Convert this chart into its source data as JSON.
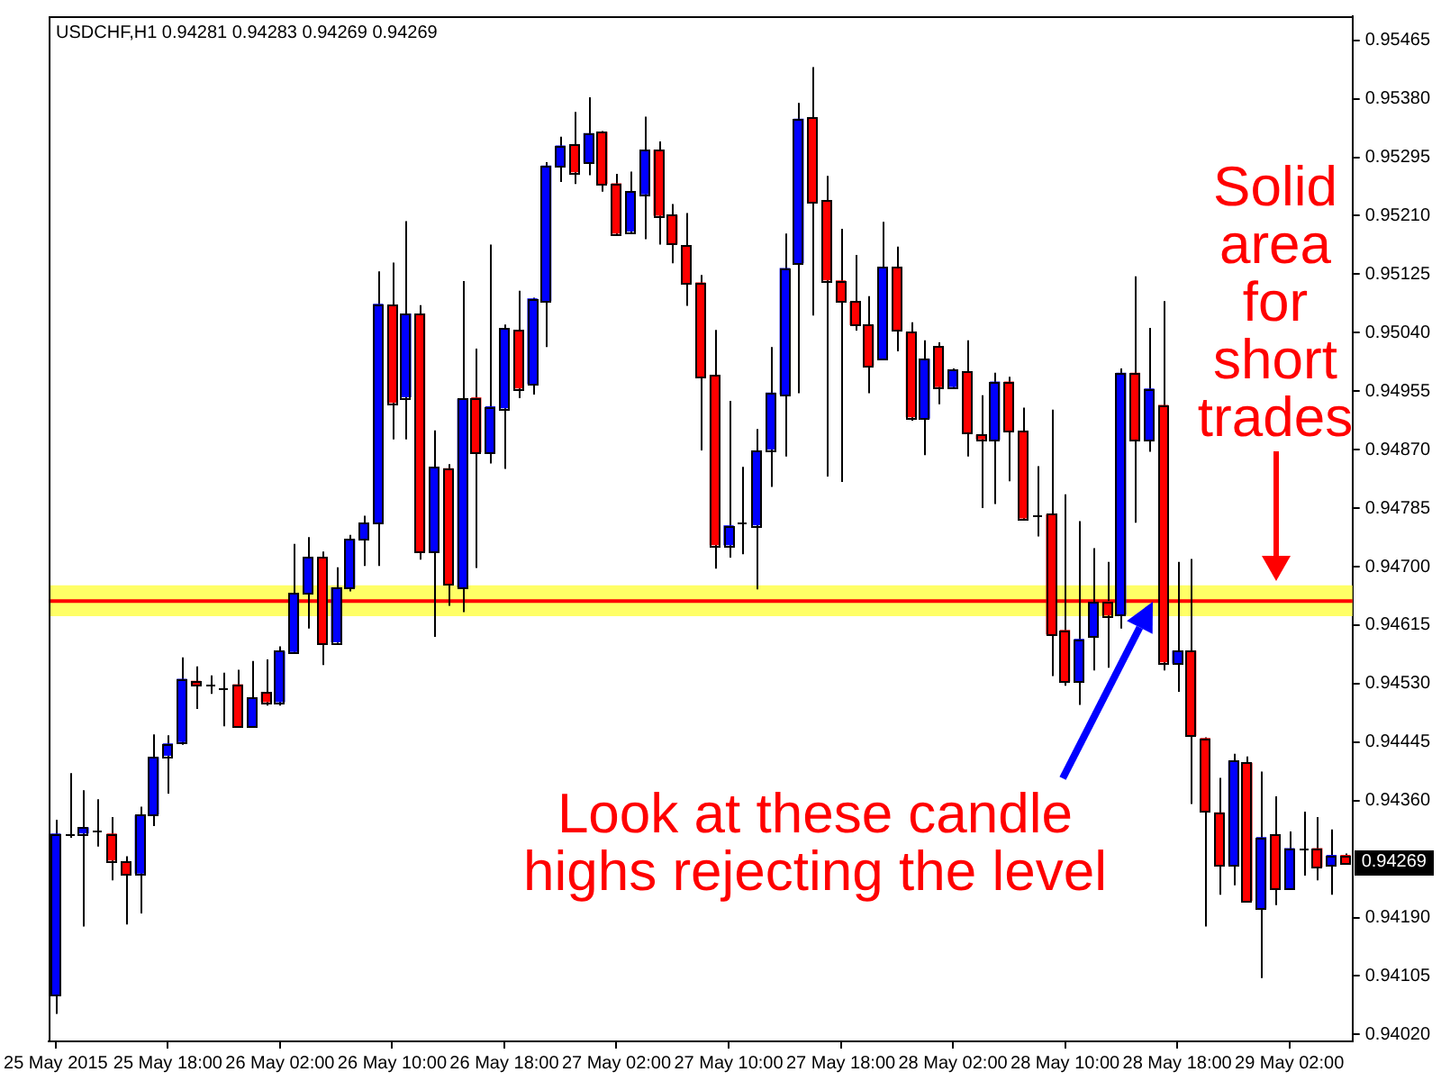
{
  "chart_data": {
    "type": "candlestick",
    "title": "USDCHF,H1 0.94281 0.94283 0.94269 0.94269",
    "categories": [
      "25 May 2015",
      null,
      null,
      null,
      null,
      null,
      null,
      null,
      "25 May 18:00",
      null,
      null,
      null,
      null,
      null,
      null,
      null,
      "26 May 02:00",
      null,
      null,
      null,
      null,
      null,
      null,
      null,
      "26 May 10:00",
      null,
      null,
      null,
      null,
      null,
      null,
      null,
      "26 May 18:00",
      null,
      null,
      null,
      null,
      null,
      null,
      null,
      "27 May 02:00",
      null,
      null,
      null,
      null,
      null,
      null,
      null,
      "27 May 10:00",
      null,
      null,
      null,
      null,
      null,
      null,
      null,
      "27 May 18:00",
      null,
      null,
      null,
      null,
      null,
      null,
      null,
      "28 May 02:00",
      null,
      null,
      null,
      null,
      null,
      null,
      null,
      "28 May 10:00",
      null,
      null,
      null,
      null,
      null,
      null,
      null,
      "28 May 18:00",
      null,
      null,
      null,
      null,
      null,
      null,
      null,
      "29 May 02:00",
      null,
      null,
      null,
      null
    ],
    "ohlc": [
      [
        0.94078,
        0.94332,
        0.9405,
        0.94312
      ],
      [
        0.94311,
        0.944,
        0.94306,
        0.94311
      ],
      [
        0.94312,
        0.94375,
        0.94177,
        0.94321
      ],
      [
        0.94317,
        0.94362,
        0.94293,
        0.94317
      ],
      [
        0.94312,
        0.94336,
        0.94244,
        0.94273
      ],
      [
        0.94272,
        0.94279,
        0.9418,
        0.94253
      ],
      [
        0.94254,
        0.94351,
        0.94196,
        0.94339
      ],
      [
        0.9434,
        0.94456,
        0.94323,
        0.94423
      ],
      [
        0.94425,
        0.94455,
        0.9437,
        0.94443
      ],
      [
        0.94445,
        0.94568,
        0.94441,
        0.94537
      ],
      [
        0.94534,
        0.94555,
        0.94493,
        0.94528
      ],
      [
        0.94528,
        0.94542,
        0.94515,
        0.94528
      ],
      [
        0.94524,
        0.94546,
        0.94468,
        0.94524
      ],
      [
        0.94529,
        0.9455,
        0.94467,
        0.94468
      ],
      [
        0.94468,
        0.94563,
        0.94467,
        0.94509
      ],
      [
        0.94518,
        0.94565,
        0.94498,
        0.94503
      ],
      [
        0.94503,
        0.94584,
        0.94498,
        0.94577
      ],
      [
        0.94576,
        0.94733,
        0.94574,
        0.94662
      ],
      [
        0.94661,
        0.94743,
        0.9461,
        0.94714
      ],
      [
        0.94714,
        0.94722,
        0.94557,
        0.94588
      ],
      [
        0.9459,
        0.94699,
        0.94589,
        0.9467
      ],
      [
        0.94669,
        0.94746,
        0.94664,
        0.9474
      ],
      [
        0.9474,
        0.94774,
        0.94701,
        0.94763
      ],
      [
        0.94763,
        0.95129,
        0.94701,
        0.95082
      ],
      [
        0.9508,
        0.95142,
        0.94885,
        0.94938
      ],
      [
        0.94946,
        0.95202,
        0.94885,
        0.95068
      ],
      [
        0.95068,
        0.9508,
        0.9471,
        0.94722
      ],
      [
        0.94722,
        0.94898,
        0.94598,
        0.94845
      ],
      [
        0.94843,
        0.94849,
        0.94643,
        0.94675
      ],
      [
        0.9467,
        0.95115,
        0.94634,
        0.94944
      ],
      [
        0.94946,
        0.95017,
        0.94698,
        0.94866
      ],
      [
        0.94866,
        0.95168,
        0.9485,
        0.94933
      ],
      [
        0.9493,
        0.95052,
        0.94842,
        0.95046
      ],
      [
        0.95044,
        0.95101,
        0.94945,
        0.94959
      ],
      [
        0.94965,
        0.95091,
        0.9495,
        0.9509
      ],
      [
        0.95086,
        0.95288,
        0.95019,
        0.95283
      ],
      [
        0.95282,
        0.95325,
        0.95259,
        0.95312
      ],
      [
        0.95314,
        0.95361,
        0.95256,
        0.95273
      ],
      [
        0.95287,
        0.95382,
        0.95269,
        0.9533
      ],
      [
        0.95332,
        0.95333,
        0.95245,
        0.95256
      ],
      [
        0.95257,
        0.95271,
        0.95182,
        0.95184
      ],
      [
        0.95187,
        0.95274,
        0.95184,
        0.95245
      ],
      [
        0.95241,
        0.95354,
        0.95176,
        0.95306
      ],
      [
        0.95306,
        0.95318,
        0.95168,
        0.9521
      ],
      [
        0.95211,
        0.95227,
        0.95141,
        0.95169
      ],
      [
        0.95167,
        0.95214,
        0.95079,
        0.95112
      ],
      [
        0.95113,
        0.95124,
        0.94869,
        0.94976
      ],
      [
        0.94979,
        0.95044,
        0.94697,
        0.94731
      ],
      [
        0.94731,
        0.94941,
        0.94713,
        0.9476
      ],
      [
        0.94763,
        0.94845,
        0.94718,
        0.94763
      ],
      [
        0.9476,
        0.949,
        0.94667,
        0.94868
      ],
      [
        0.9487,
        0.95019,
        0.94816,
        0.94953
      ],
      [
        0.9495,
        0.95184,
        0.9486,
        0.95134
      ],
      [
        0.95141,
        0.95374,
        0.94952,
        0.95351
      ],
      [
        0.95353,
        0.95426,
        0.95065,
        0.95229
      ],
      [
        0.95232,
        0.95268,
        0.94831,
        0.95116
      ],
      [
        0.95116,
        0.95191,
        0.94823,
        0.95085
      ],
      [
        0.95085,
        0.95153,
        0.95043,
        0.95051
      ],
      [
        0.95051,
        0.95093,
        0.94952,
        0.94992
      ],
      [
        0.95002,
        0.95201,
        0.95001,
        0.95136
      ],
      [
        0.95136,
        0.95165,
        0.95013,
        0.95044
      ],
      [
        0.95041,
        0.95055,
        0.94912,
        0.94917
      ],
      [
        0.94915,
        0.95029,
        0.94862,
        0.95002
      ],
      [
        0.9502,
        0.95026,
        0.94936,
        0.94961
      ],
      [
        0.94961,
        0.94988,
        0.9496,
        0.94986
      ],
      [
        0.94984,
        0.95029,
        0.9486,
        0.94894
      ],
      [
        0.94892,
        0.94949,
        0.94785,
        0.94885
      ],
      [
        0.94884,
        0.94982,
        0.94791,
        0.94969
      ],
      [
        0.94969,
        0.94976,
        0.94824,
        0.94897
      ],
      [
        0.94897,
        0.94931,
        0.94767,
        0.9477
      ],
      [
        0.94774,
        0.94846,
        0.94744,
        0.94774
      ],
      [
        0.94776,
        0.94928,
        0.94541,
        0.94601
      ],
      [
        0.94608,
        0.94805,
        0.94527,
        0.94533
      ],
      [
        0.94533,
        0.94766,
        0.94499,
        0.94595
      ],
      [
        0.94598,
        0.94727,
        0.94549,
        0.94648
      ],
      [
        0.9465,
        0.94707,
        0.94553,
        0.94629
      ],
      [
        0.9463,
        0.94988,
        0.9461,
        0.94982
      ],
      [
        0.94982,
        0.95122,
        0.94764,
        0.94884
      ],
      [
        0.94884,
        0.95047,
        0.94867,
        0.94959
      ],
      [
        0.94935,
        0.95086,
        0.94549,
        0.94561
      ],
      [
        0.94559,
        0.94707,
        0.94518,
        0.94578
      ],
      [
        0.94578,
        0.94711,
        0.94355,
        0.94454
      ],
      [
        0.94451,
        0.94452,
        0.94177,
        0.94344
      ],
      [
        0.94343,
        0.94393,
        0.94223,
        0.94266
      ],
      [
        0.94266,
        0.94428,
        0.94237,
        0.94418
      ],
      [
        0.94415,
        0.94424,
        0.94213,
        0.94214
      ],
      [
        0.94203,
        0.94402,
        0.94102,
        0.94307
      ],
      [
        0.9431,
        0.94366,
        0.94208,
        0.94232
      ],
      [
        0.94232,
        0.94315,
        0.94231,
        0.94291
      ],
      [
        0.9429,
        0.94344,
        0.94251,
        0.9429
      ],
      [
        0.94291,
        0.94336,
        0.94244,
        0.94263
      ],
      [
        0.94266,
        0.94318,
        0.94223,
        0.94281
      ],
      [
        0.94281,
        0.94283,
        0.94269,
        0.94269
      ]
    ],
    "colors": [
      "#0000ff",
      "#000000",
      "#0000ff",
      "#000000",
      "#ff0000",
      "#ff0000",
      "#0000ff",
      "#0000ff",
      "#0000ff",
      "#0000ff",
      "#ff0000",
      "#000000",
      "#000000",
      "#ff0000",
      "#0000ff",
      "#ff0000",
      "#0000ff",
      "#0000ff",
      "#0000ff",
      "#ff0000",
      "#0000ff",
      "#0000ff",
      "#0000ff",
      "#0000ff",
      "#ff0000",
      "#0000ff",
      "#ff0000",
      "#0000ff",
      "#ff0000",
      "#0000ff",
      "#ff0000",
      "#0000ff",
      "#0000ff",
      "#ff0000",
      "#0000ff",
      "#0000ff",
      "#0000ff",
      "#ff0000",
      "#0000ff",
      "#ff0000",
      "#ff0000",
      "#0000ff",
      "#0000ff",
      "#ff0000",
      "#ff0000",
      "#ff0000",
      "#ff0000",
      "#ff0000",
      "#0000ff",
      "#000000",
      "#0000ff",
      "#0000ff",
      "#0000ff",
      "#0000ff",
      "#ff0000",
      "#ff0000",
      "#ff0000",
      "#ff0000",
      "#ff0000",
      "#0000ff",
      "#ff0000",
      "#ff0000",
      "#0000ff",
      "#ff0000",
      "#0000ff",
      "#ff0000",
      "#ff0000",
      "#0000ff",
      "#ff0000",
      "#ff0000",
      "#000000",
      "#ff0000",
      "#ff0000",
      "#0000ff",
      "#0000ff",
      "#ff0000",
      "#0000ff",
      "#ff0000",
      "#0000ff",
      "#ff0000",
      "#0000ff",
      "#ff0000",
      "#ff0000",
      "#ff0000",
      "#0000ff",
      "#ff0000",
      "#0000ff",
      "#ff0000",
      "#0000ff",
      "#000000",
      "#ff0000",
      "#0000ff",
      "#ff0000"
    ],
    "ylim": [
      0.9401,
      0.955
    ],
    "yticks": [
      0.95465,
      {
        "value": 0.9538,
        "label": "0.95380"
      },
      0.95295,
      {
        "value": 0.9521,
        "label": "0.95210"
      },
      0.95125,
      {
        "value": 0.9504,
        "label": "0.95040"
      },
      0.94955,
      {
        "value": 0.9487,
        "label": "0.94870"
      },
      0.94785,
      {
        "value": 0.947,
        "label": "0.94700"
      },
      0.94615,
      {
        "value": 0.9453,
        "label": "0.94530"
      },
      0.94445,
      {
        "value": 0.9436,
        "label": "0.94360"
      },
      {
        "value": 0.9419,
        "label": "0.94190"
      },
      0.94105,
      {
        "value": 0.9402,
        "label": "0.94020"
      }
    ],
    "ref_lines": [
      {
        "axis": "y",
        "value": 0.9465,
        "color": "#ff0000"
      }
    ],
    "bands": [
      {
        "axis": "y",
        "from": 0.94628,
        "to": 0.94673,
        "color": "#ffff66"
      }
    ],
    "annotations": [
      "Solid area for short trades",
      "Look at these candle highs rejecting the level",
      "0.94269"
    ]
  }
}
